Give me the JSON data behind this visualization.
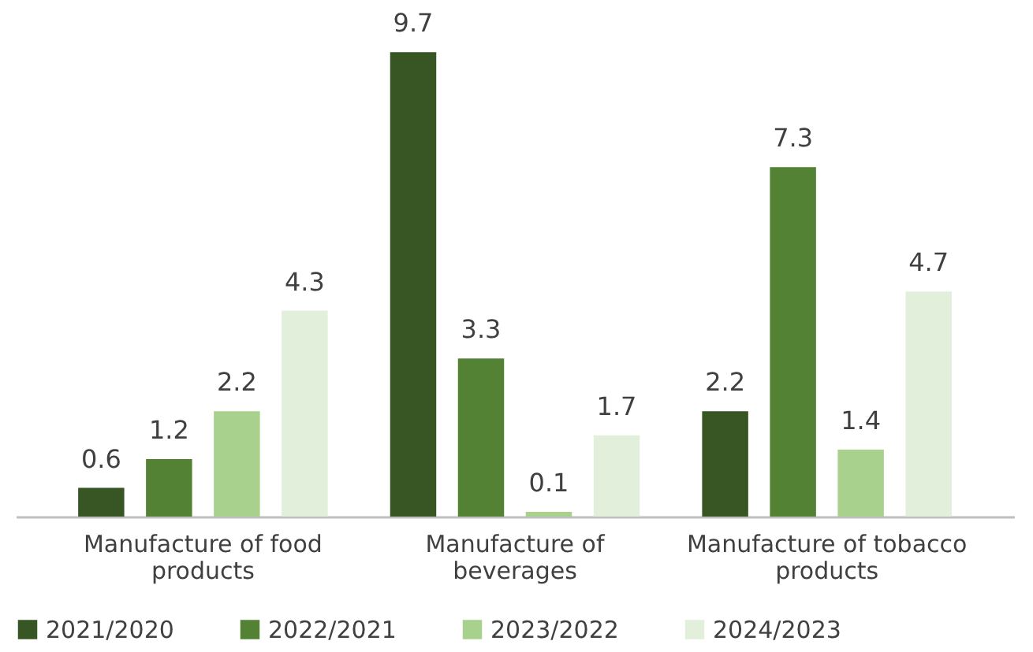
{
  "chart_data": {
    "type": "bar",
    "categories": [
      "Manufacture of food products",
      "Manufacture of beverages",
      "Manufacture of tobacco products"
    ],
    "series": [
      {
        "name": "2021/2020",
        "color": "#375623",
        "values": [
          0.6,
          9.7,
          2.2
        ]
      },
      {
        "name": "2022/2021",
        "color": "#548235",
        "values": [
          1.2,
          3.3,
          7.3
        ]
      },
      {
        "name": "2023/2022",
        "color": "#a9d18e",
        "values": [
          2.2,
          0.1,
          1.4
        ]
      },
      {
        "name": "2024/2023",
        "color": "#e2efda",
        "values": [
          4.3,
          1.7,
          4.7
        ]
      }
    ],
    "data_labels": true,
    "grid": false,
    "legend": "bottom"
  }
}
